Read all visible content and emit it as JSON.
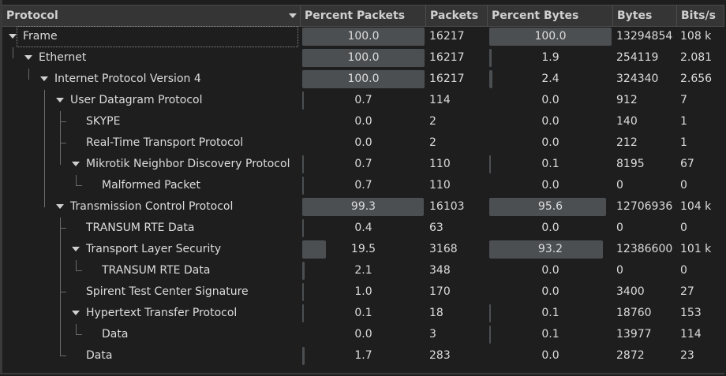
{
  "columns": [
    {
      "key": "protocol",
      "label": "Protocol"
    },
    {
      "key": "pct_packets",
      "label": "Percent Packets"
    },
    {
      "key": "packets",
      "label": "Packets"
    },
    {
      "key": "pct_bytes",
      "label": "Percent Bytes"
    },
    {
      "key": "bytes",
      "label": "Bytes"
    },
    {
      "key": "bits",
      "label": "Bits/s"
    }
  ],
  "rows": [
    {
      "depth": 0,
      "expanded": true,
      "protocol": "Frame",
      "pct_packets": "100.0",
      "pct_packets_fill": 100.0,
      "packets": "16217",
      "pct_bytes": "100.0",
      "pct_bytes_fill": 100.0,
      "bytes": "13294854",
      "bits": "108 k"
    },
    {
      "depth": 1,
      "expanded": true,
      "protocol": "Ethernet",
      "pct_packets": "100.0",
      "pct_packets_fill": 100.0,
      "packets": "16217",
      "pct_bytes": "1.9",
      "pct_bytes_fill": 1.9,
      "bytes": "254119",
      "bits": "2.081"
    },
    {
      "depth": 2,
      "expanded": true,
      "protocol": "Internet Protocol Version 4",
      "pct_packets": "100.0",
      "pct_packets_fill": 100.0,
      "packets": "16217",
      "pct_bytes": "2.4",
      "pct_bytes_fill": 2.4,
      "bytes": "324340",
      "bits": "2.656"
    },
    {
      "depth": 3,
      "expanded": true,
      "protocol": "User Datagram Protocol",
      "pct_packets": "0.7",
      "pct_packets_fill": 0.7,
      "packets": "114",
      "pct_bytes": "0.0",
      "pct_bytes_fill": 0.0,
      "bytes": "912",
      "bits": "7"
    },
    {
      "depth": 4,
      "expanded": false,
      "protocol": "SKYPE",
      "pct_packets": "0.0",
      "pct_packets_fill": 0.0,
      "packets": "2",
      "pct_bytes": "0.0",
      "pct_bytes_fill": 0.0,
      "bytes": "140",
      "bits": "1"
    },
    {
      "depth": 4,
      "expanded": false,
      "protocol": "Real-Time Transport Protocol",
      "pct_packets": "0.0",
      "pct_packets_fill": 0.0,
      "packets": "2",
      "pct_bytes": "0.0",
      "pct_bytes_fill": 0.0,
      "bytes": "212",
      "bits": "1"
    },
    {
      "depth": 4,
      "expanded": true,
      "protocol": "Mikrotik Neighbor Discovery Protocol",
      "pct_packets": "0.7",
      "pct_packets_fill": 0.7,
      "packets": "110",
      "pct_bytes": "0.1",
      "pct_bytes_fill": 0.1,
      "bytes": "8195",
      "bits": "67"
    },
    {
      "depth": 5,
      "expanded": false,
      "protocol": "Malformed Packet",
      "pct_packets": "0.7",
      "pct_packets_fill": 0.7,
      "packets": "110",
      "pct_bytes": "0.0",
      "pct_bytes_fill": 0.0,
      "bytes": "0",
      "bits": "0"
    },
    {
      "depth": 3,
      "expanded": true,
      "protocol": "Transmission Control Protocol",
      "pct_packets": "99.3",
      "pct_packets_fill": 99.3,
      "packets": "16103",
      "pct_bytes": "95.6",
      "pct_bytes_fill": 95.6,
      "bytes": "12706936",
      "bits": "104 k"
    },
    {
      "depth": 4,
      "expanded": false,
      "protocol": "TRANSUM RTE Data",
      "pct_packets": "0.4",
      "pct_packets_fill": 0.4,
      "packets": "63",
      "pct_bytes": "0.0",
      "pct_bytes_fill": 0.0,
      "bytes": "0",
      "bits": "0"
    },
    {
      "depth": 4,
      "expanded": true,
      "protocol": "Transport Layer Security",
      "pct_packets": "19.5",
      "pct_packets_fill": 19.5,
      "packets": "3168",
      "pct_bytes": "93.2",
      "pct_bytes_fill": 93.2,
      "bytes": "12386600",
      "bits": "101 k"
    },
    {
      "depth": 5,
      "expanded": false,
      "protocol": "TRANSUM RTE Data",
      "pct_packets": "2.1",
      "pct_packets_fill": 2.1,
      "packets": "348",
      "pct_bytes": "0.0",
      "pct_bytes_fill": 0.0,
      "bytes": "0",
      "bits": "0"
    },
    {
      "depth": 4,
      "expanded": false,
      "protocol": "Spirent Test Center Signature",
      "pct_packets": "1.0",
      "pct_packets_fill": 1.0,
      "packets": "170",
      "pct_bytes": "0.0",
      "pct_bytes_fill": 0.0,
      "bytes": "3400",
      "bits": "27"
    },
    {
      "depth": 4,
      "expanded": true,
      "protocol": "Hypertext Transfer Protocol",
      "pct_packets": "0.1",
      "pct_packets_fill": 0.1,
      "packets": "18",
      "pct_bytes": "0.1",
      "pct_bytes_fill": 0.1,
      "bytes": "18760",
      "bits": "153"
    },
    {
      "depth": 5,
      "expanded": false,
      "protocol": "Data",
      "pct_packets": "0.0",
      "pct_packets_fill": 0.0,
      "packets": "3",
      "pct_bytes": "0.1",
      "pct_bytes_fill": 0.1,
      "bytes": "13977",
      "bits": "114"
    },
    {
      "depth": 4,
      "expanded": false,
      "protocol": "Data",
      "pct_packets": "1.7",
      "pct_packets_fill": 1.7,
      "packets": "283",
      "pct_bytes": "0.0",
      "pct_bytes_fill": 0.0,
      "bytes": "2872",
      "bits": "23"
    }
  ],
  "colors": {
    "background": "#1e1e1e",
    "header": "#353535",
    "bar": "#4c4f52",
    "text": "#dcdcdc"
  },
  "icons": {
    "sort": "sort-descending-icon",
    "expanded": "triangle-down-icon"
  }
}
